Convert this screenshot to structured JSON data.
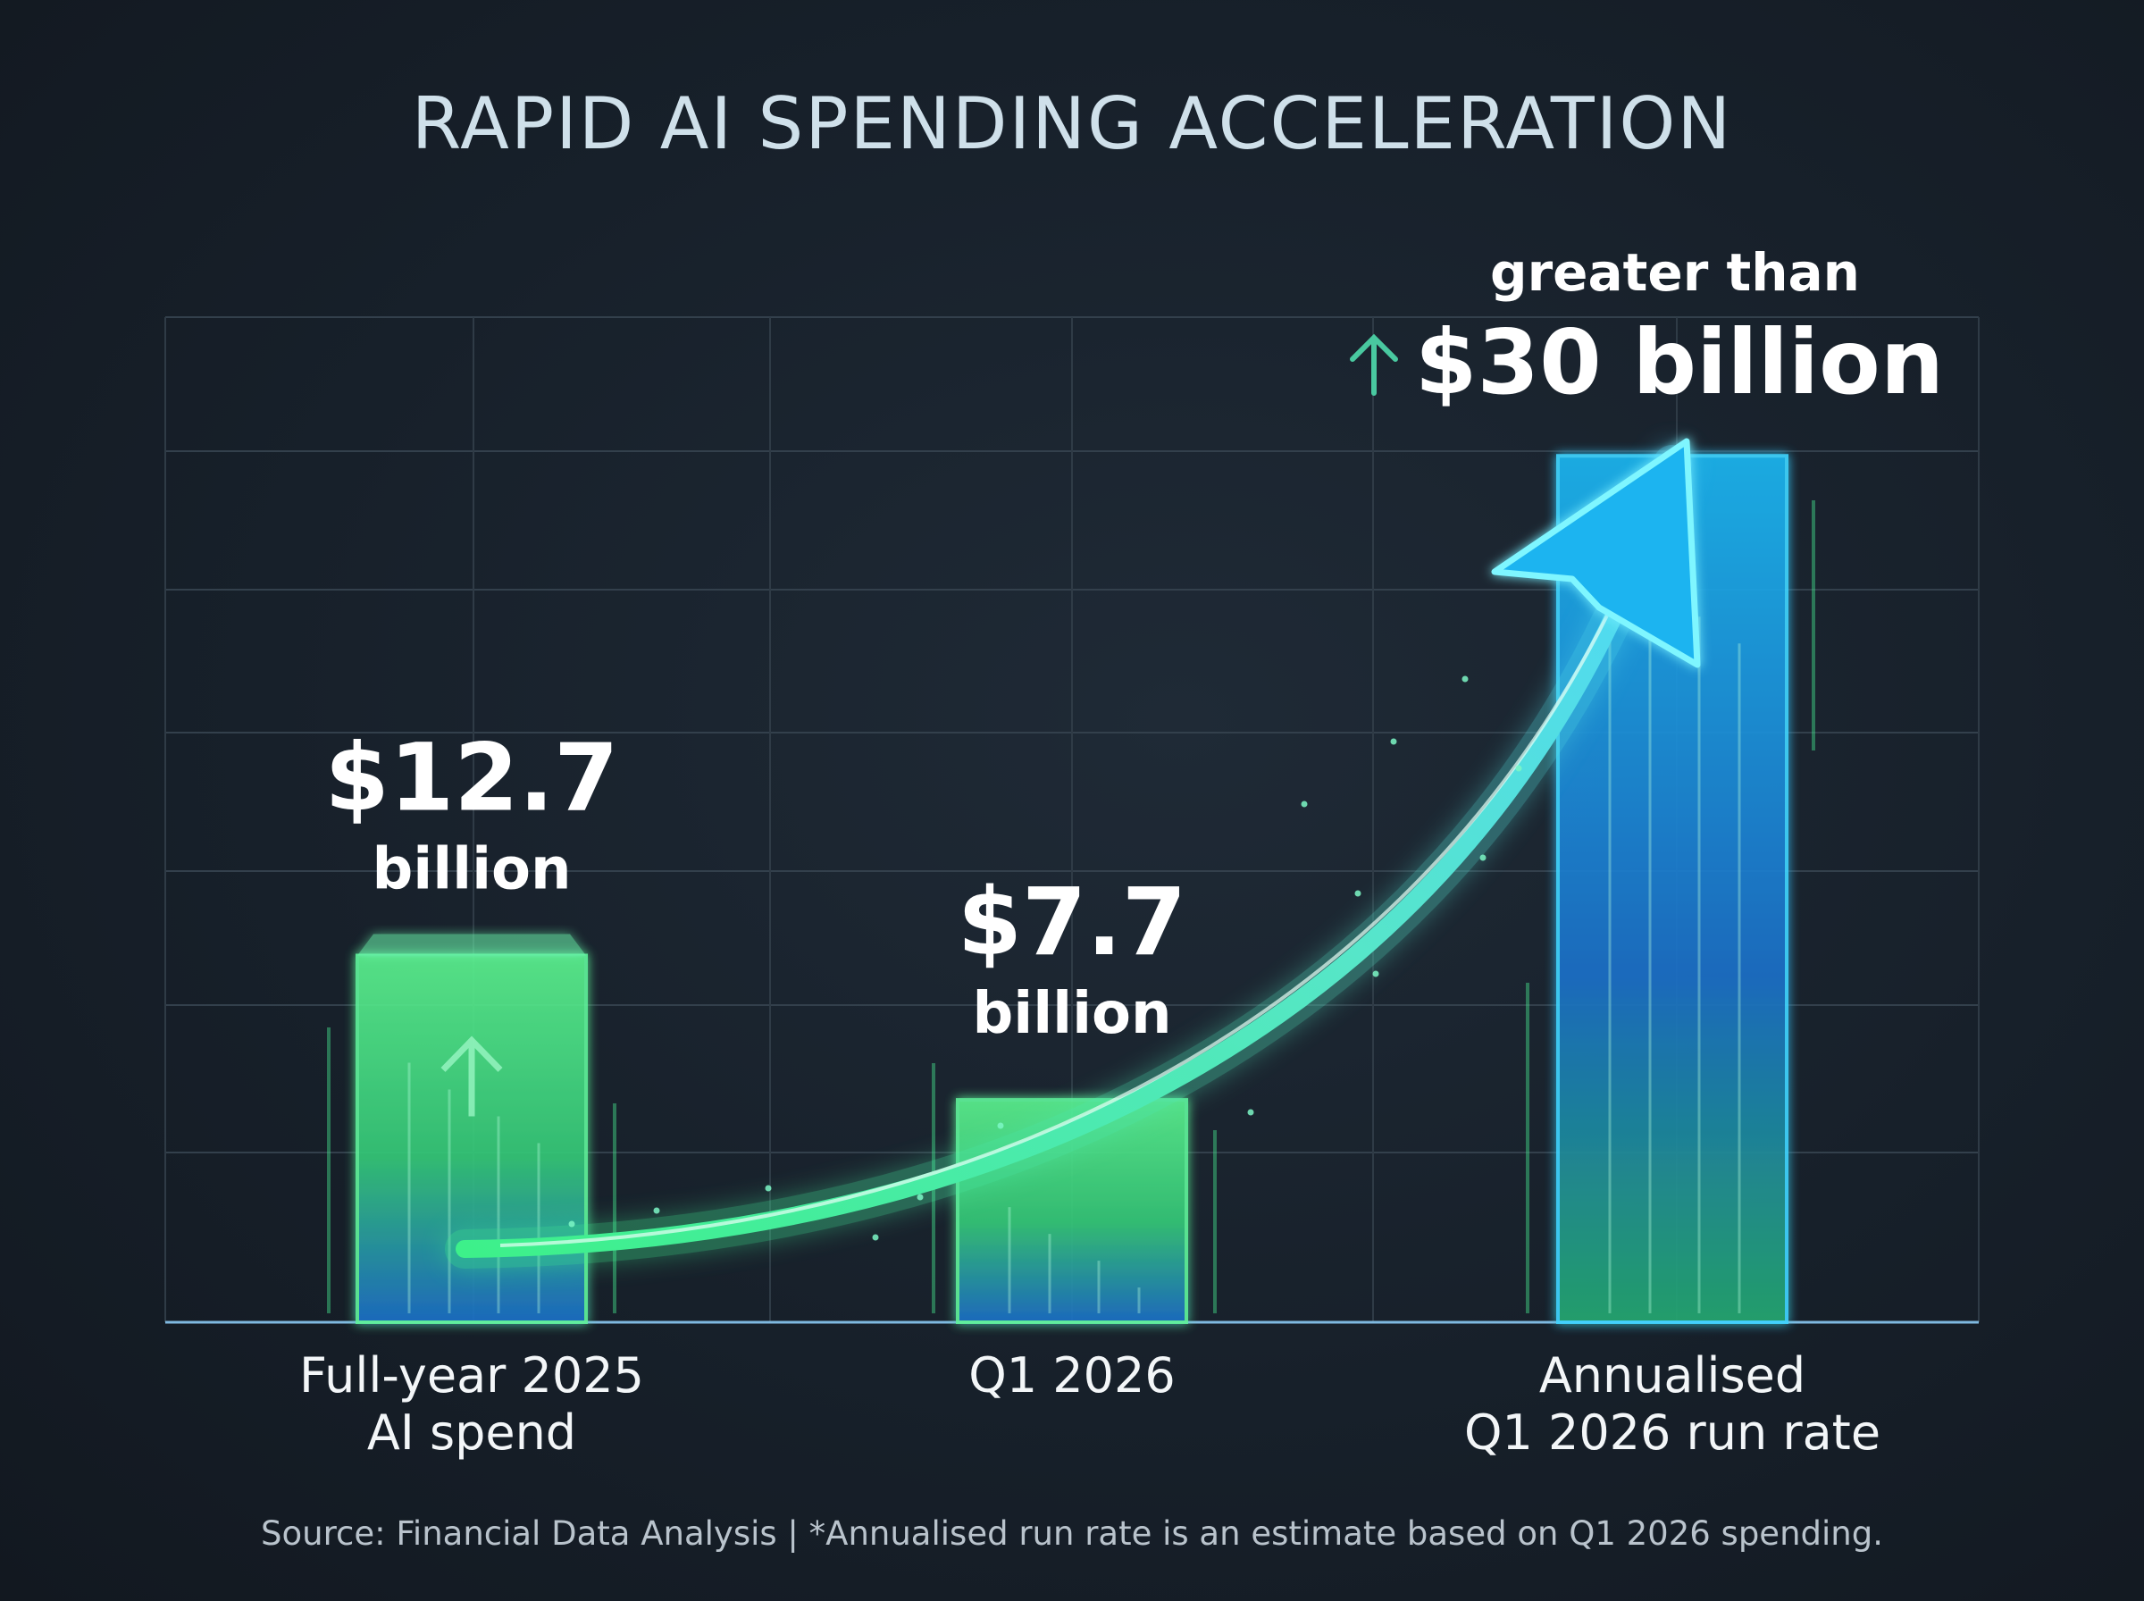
{
  "chart_data": {
    "type": "bar",
    "title": "RAPID AI SPENDING ACCELERATION",
    "xlabel": "",
    "ylabel": "",
    "categories": [
      [
        "Full-year 2025",
        "AI spend"
      ],
      [
        "Q1 2026"
      ],
      [
        "Annualised",
        "Q1 2026 run rate"
      ]
    ],
    "values": [
      12.7,
      7.7,
      30
    ],
    "value_labels": [
      {
        "prefix": "",
        "amount": "$12.7",
        "unit": "billion"
      },
      {
        "prefix": "",
        "amount": "$7.7",
        "unit": "billion"
      },
      {
        "prefix": "greater than",
        "amount": "$30 billion",
        "unit": ""
      }
    ],
    "ylim": [
      0,
      30
    ],
    "grid": true,
    "legend": "none",
    "trend_arrow": true
  },
  "footer": {
    "source": "Source: Financial Data Analysis | *Annualised run rate is an estimate based on Q1 2026 spending."
  },
  "colors": {
    "green": "#4cea8c",
    "blue": "#1e9be8",
    "cyan": "#5cf0ff",
    "title": "#cfe0ea",
    "grid": "#3a4652"
  },
  "icons": [
    "up-arrow-icon",
    "trend-arrow-icon"
  ]
}
